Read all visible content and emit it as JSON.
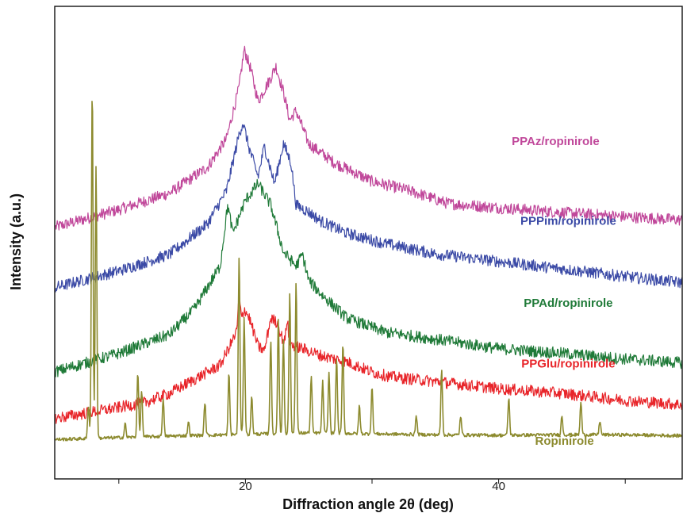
{
  "chart_data": {
    "type": "line",
    "xlabel": "Diffraction angle 2θ (deg)",
    "ylabel": "Intensity (a.u.)",
    "xlim": [
      5,
      54.5
    ],
    "x_ticks": [
      10,
      20,
      30,
      40,
      50
    ],
    "x_tick_labels": [
      "",
      "20",
      "",
      "40",
      ""
    ],
    "y_ticks": "none",
    "grid": false,
    "legend": "inline labels at right",
    "y_units": "arbitrary (vertically offset traces, 0-100 plot height)",
    "series": [
      {
        "name": "PPAz/ropinirole",
        "color": "#c0479a",
        "label_x": 44.5,
        "label_y": 70.7,
        "points": [
          [
            5,
            53.3
          ],
          [
            10,
            57
          ],
          [
            14,
            60.5
          ],
          [
            17,
            66
          ],
          [
            18.5,
            72
          ],
          [
            19.5,
            83
          ],
          [
            19.9,
            91
          ],
          [
            20.4,
            87
          ],
          [
            21,
            80
          ],
          [
            22,
            85
          ],
          [
            22.4,
            87.5
          ],
          [
            23,
            82
          ],
          [
            23.5,
            76
          ],
          [
            24,
            78
          ],
          [
            25,
            71
          ],
          [
            27,
            67
          ],
          [
            30,
            63
          ],
          [
            33,
            61
          ],
          [
            36,
            58.3
          ],
          [
            40,
            57.4
          ],
          [
            45,
            56.4
          ],
          [
            50,
            55.5
          ],
          [
            54.5,
            54.8
          ]
        ],
        "peaks": []
      },
      {
        "name": "PPPim/ropinirole",
        "color": "#3b4aa6",
        "label_x": 45.5,
        "label_y": 53.8,
        "points": [
          [
            5,
            40.5
          ],
          [
            10,
            44
          ],
          [
            14,
            47.5
          ],
          [
            17,
            54
          ],
          [
            18.5,
            61
          ],
          [
            19.5,
            73
          ],
          [
            19.8,
            75.5
          ],
          [
            20.3,
            70
          ],
          [
            21,
            64
          ],
          [
            21.5,
            70.5
          ],
          [
            22.3,
            62.5
          ],
          [
            23,
            71
          ],
          [
            23.6,
            67
          ],
          [
            24,
            58
          ],
          [
            25,
            56.5
          ],
          [
            26,
            54.5
          ],
          [
            28,
            52
          ],
          [
            31,
            49.8
          ],
          [
            35,
            47.6
          ],
          [
            40,
            46
          ],
          [
            45,
            44.4
          ],
          [
            50,
            42.8
          ],
          [
            54.5,
            41.5
          ]
        ],
        "peaks": []
      },
      {
        "name": "PPAd/ropinirole",
        "color": "#1f7a38",
        "label_x": 45.5,
        "label_y": 36.4,
        "points": [
          [
            5,
            22.6
          ],
          [
            10,
            26.5
          ],
          [
            14,
            30.5
          ],
          [
            16,
            36
          ],
          [
            18,
            45
          ],
          [
            18.6,
            58
          ],
          [
            19,
            52
          ],
          [
            20,
            59
          ],
          [
            21,
            62.5
          ],
          [
            22,
            58
          ],
          [
            23,
            48
          ],
          [
            24,
            45
          ],
          [
            24.5,
            47.5
          ],
          [
            25,
            42
          ],
          [
            26,
            39
          ],
          [
            28,
            34
          ],
          [
            31,
            31
          ],
          [
            35,
            29.5
          ],
          [
            40,
            27.5
          ],
          [
            45,
            26.5
          ],
          [
            50,
            25.3
          ],
          [
            54.5,
            24.5
          ]
        ],
        "peaks": []
      },
      {
        "name": "PPGlu/ropinirole",
        "color": "#e8252a",
        "label_x": 45.5,
        "label_y": 23.5,
        "points": [
          [
            5,
            12.7
          ],
          [
            10,
            15
          ],
          [
            12,
            16
          ],
          [
            14,
            18
          ],
          [
            16,
            21
          ],
          [
            18,
            24
          ],
          [
            19.5,
            32
          ],
          [
            19.9,
            36
          ],
          [
            20.3,
            34
          ],
          [
            21,
            28
          ],
          [
            21.5,
            27
          ],
          [
            22,
            34
          ],
          [
            22.5,
            33
          ],
          [
            23,
            29
          ],
          [
            24,
            28
          ],
          [
            26,
            26
          ],
          [
            28,
            24.7
          ],
          [
            30,
            22.5
          ],
          [
            31.5,
            21.5
          ],
          [
            35,
            20.5
          ],
          [
            40,
            19
          ],
          [
            45,
            18
          ],
          [
            50,
            16.5
          ],
          [
            54.5,
            15.6
          ]
        ],
        "peaks": [
          [
            19.5,
            6
          ],
          [
            23.3,
            5
          ]
        ]
      },
      {
        "name": "Ropinirole",
        "color": "#8c8a2e",
        "label_x": 45.2,
        "label_y": 7.1,
        "points": [
          [
            5,
            8.2
          ],
          [
            15,
            9
          ],
          [
            25,
            9.6
          ],
          [
            30,
            9.4
          ],
          [
            35,
            9.2
          ],
          [
            40,
            9.1
          ],
          [
            45,
            9.2
          ],
          [
            50,
            9.2
          ],
          [
            54.5,
            9
          ]
        ],
        "peaks": [
          [
            7.6,
            7
          ],
          [
            7.9,
            75
          ],
          [
            8.2,
            58
          ],
          [
            10.5,
            3
          ],
          [
            11.5,
            14
          ],
          [
            11.8,
            10
          ],
          [
            13.5,
            8
          ],
          [
            15.5,
            3
          ],
          [
            16.8,
            7
          ],
          [
            18.7,
            13
          ],
          [
            19.5,
            38
          ],
          [
            19.9,
            25
          ],
          [
            20.5,
            8
          ],
          [
            22,
            20
          ],
          [
            22.6,
            24
          ],
          [
            23,
            20
          ],
          [
            23.5,
            30
          ],
          [
            24,
            32
          ],
          [
            25.2,
            12
          ],
          [
            26.1,
            11
          ],
          [
            26.6,
            13
          ],
          [
            27.2,
            16
          ],
          [
            27.7,
            19
          ],
          [
            29,
            6
          ],
          [
            30,
            10
          ],
          [
            33.5,
            4
          ],
          [
            35.5,
            14
          ],
          [
            37,
            4
          ],
          [
            40.8,
            8
          ],
          [
            45,
            4
          ],
          [
            46.5,
            7
          ],
          [
            48,
            3
          ]
        ]
      }
    ]
  },
  "frame": {
    "background": "#ffffff",
    "axis_color": "#111111"
  }
}
